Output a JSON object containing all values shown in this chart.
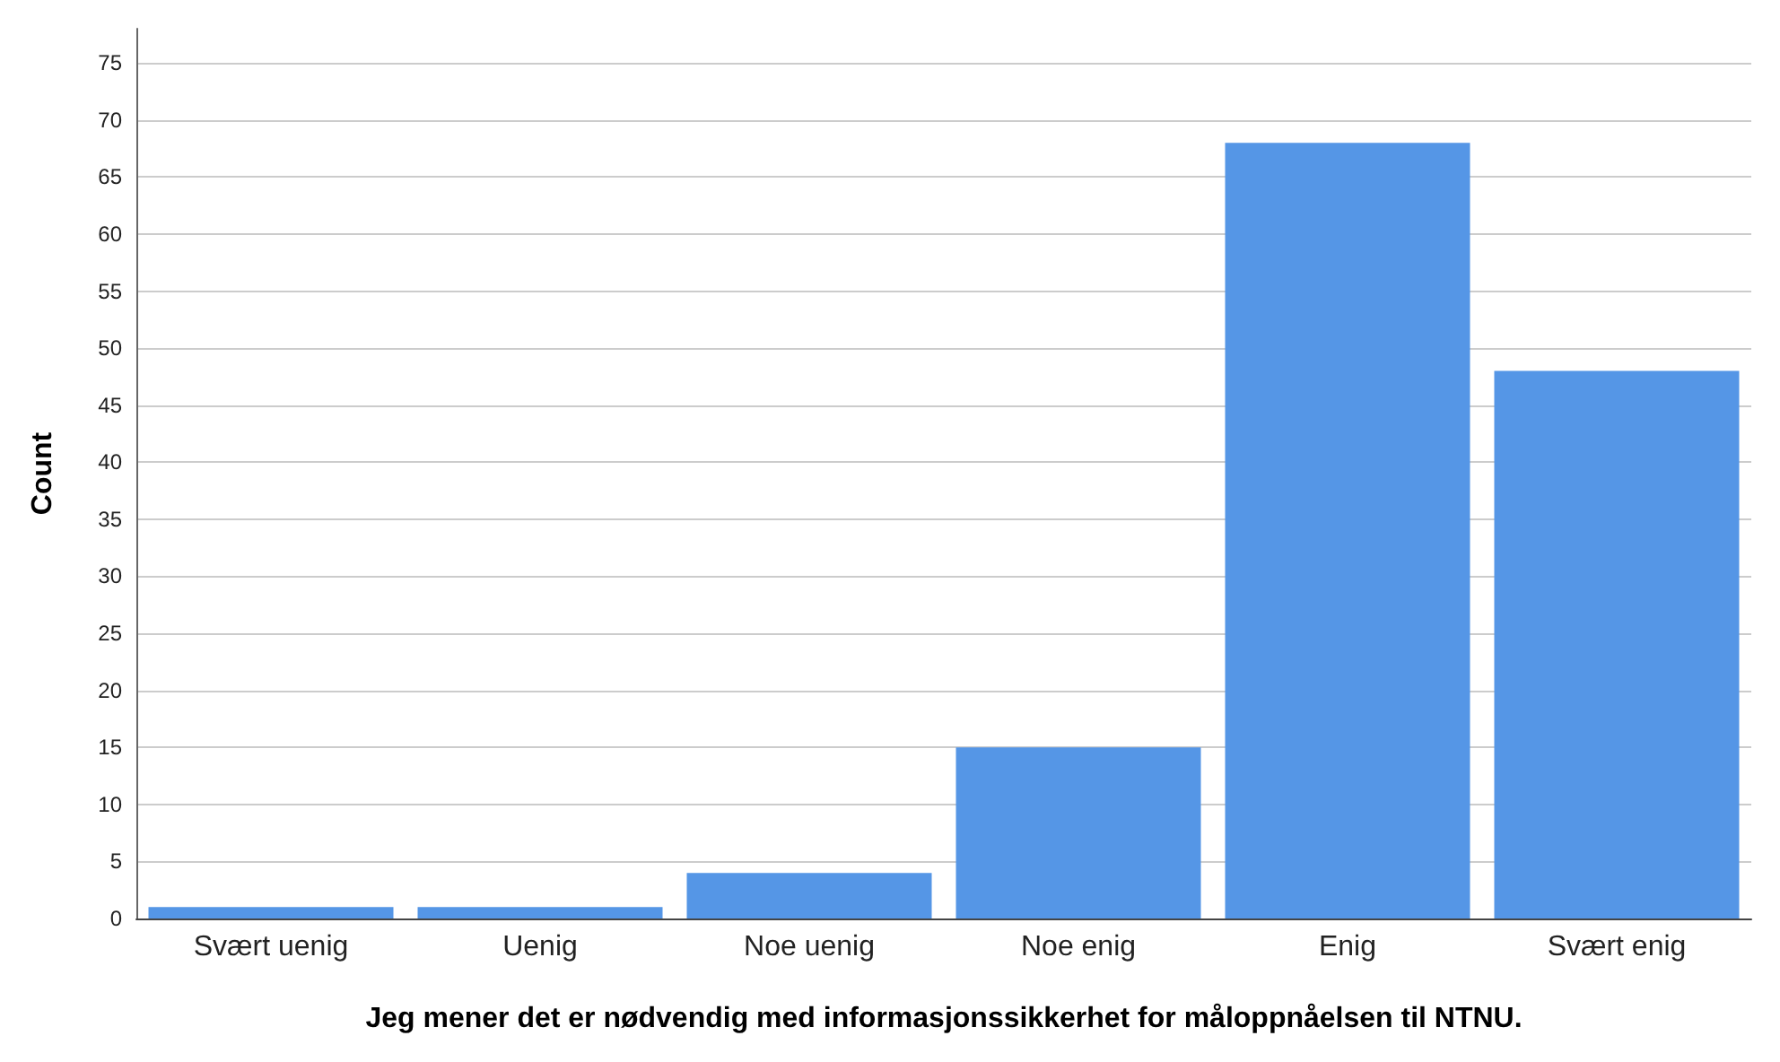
{
  "chart_data": {
    "type": "bar",
    "xlabel": "Jeg mener det er nødvendig med informasjonssikkerhet for måloppnåelsen til NTNU.",
    "ylabel": "Count",
    "categories": [
      "Svært uenig",
      "Uenig",
      "Noe uenig",
      "Noe enig",
      "Enig",
      "Svært enig"
    ],
    "values": [
      1,
      1,
      4,
      15,
      68,
      48
    ],
    "color": "#5596e6",
    "ylim": [
      0,
      78
    ],
    "yticks": [
      0,
      5,
      10,
      15,
      20,
      25,
      30,
      35,
      40,
      45,
      50,
      55,
      60,
      65,
      70,
      75
    ],
    "grid": "y"
  }
}
